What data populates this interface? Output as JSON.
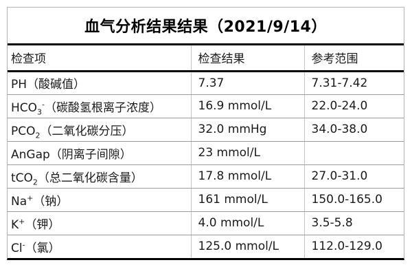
{
  "title": "血气分析结果结果（2021/9/14）",
  "table": {
    "headers": [
      "检查项",
      "检查结果",
      "参考范围"
    ],
    "rows": [
      {
        "item": [
          {
            "t": "PH",
            "s": "n"
          },
          {
            "t": "（酸碱值）",
            "s": "n"
          }
        ],
        "result": "7.37",
        "range": "7.31-7.42"
      },
      {
        "item": [
          {
            "t": "HCO",
            "s": "n"
          },
          {
            "t": "3",
            "s": "sub"
          },
          {
            "t": "-",
            "s": "sup"
          },
          {
            "t": "（碳酸氢根离子浓度）",
            "s": "n"
          }
        ],
        "result": "16.9 mmol/L",
        "range": "22.0-24.0"
      },
      {
        "item": [
          {
            "t": "PCO",
            "s": "n"
          },
          {
            "t": "2",
            "s": "sub"
          },
          {
            "t": "（二氧化碳分压）",
            "s": "n"
          }
        ],
        "result": "32.0 mmHg",
        "range": "34.0-38.0"
      },
      {
        "item": [
          {
            "t": "AnGap",
            "s": "n"
          },
          {
            "t": "（阴离子间隙）",
            "s": "n"
          }
        ],
        "result": "23 mmol/L",
        "range": ""
      },
      {
        "item": [
          {
            "t": "tCO",
            "s": "n"
          },
          {
            "t": "2",
            "s": "sub"
          },
          {
            "t": "（总二氧化碳含量）",
            "s": "n"
          }
        ],
        "result": "17.8 mmol/L",
        "range": "27.0-31.0"
      },
      {
        "item": [
          {
            "t": "Na",
            "s": "n"
          },
          {
            "t": "+",
            "s": "sup"
          },
          {
            "t": "（钠）",
            "s": "n"
          }
        ],
        "result": "161 mmol/L",
        "range": "150.0-165.0"
      },
      {
        "item": [
          {
            "t": "K",
            "s": "n"
          },
          {
            "t": "+",
            "s": "sup"
          },
          {
            "t": "（钾）",
            "s": "n"
          }
        ],
        "result": "4.0 mmol/L",
        "range": "3.5-5.8"
      },
      {
        "item": [
          {
            "t": "Cl",
            "s": "n"
          },
          {
            "t": "-",
            "s": "sup"
          },
          {
            "t": "（氯）",
            "s": "n"
          }
        ],
        "result": "125.0 mmol/L",
        "range": "112.0-129.0"
      }
    ]
  },
  "colors": {
    "background": "#ffffff",
    "title_text": "#000000",
    "body_text": "#1a1a1a",
    "thick_border": "#000000",
    "outer_border": "#b3b3b3",
    "row_divider": "#9b9b9b",
    "column_divider": "#c4c4c4"
  }
}
